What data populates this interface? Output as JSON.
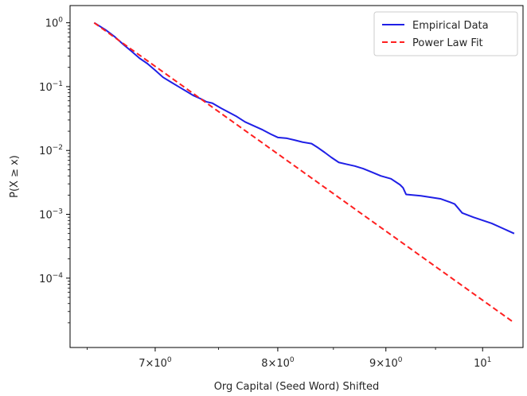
{
  "chart_data": {
    "type": "line",
    "title": "",
    "xlabel": "Org Capital (Seed Word) Shifted",
    "ylabel": "P(X ≥ x)",
    "xscale": "log",
    "yscale": "log",
    "xlim": [
      6.38,
      10.45
    ],
    "ylim": [
      8.2e-06,
      1.86
    ],
    "grid": false,
    "legend_position": "top-right",
    "x_ticks": [
      {
        "value": 7,
        "base": "7×10",
        "exp": "0"
      },
      {
        "value": 8,
        "base": "8×10",
        "exp": "0"
      },
      {
        "value": 9,
        "base": "9×10",
        "exp": "0"
      },
      {
        "value": 10,
        "base": "10",
        "exp": "1"
      }
    ],
    "y_ticks": [
      {
        "value": 1,
        "base": "10",
        "exp": "0"
      },
      {
        "value": 0.1,
        "base": "10",
        "exp": "−1"
      },
      {
        "value": 0.01,
        "base": "10",
        "exp": "−2"
      },
      {
        "value": 0.001,
        "base": "10",
        "exp": "−3"
      },
      {
        "value": 0.0001,
        "base": "10",
        "exp": "−4"
      }
    ],
    "series": [
      {
        "name": "Empirical Data",
        "color": "#1f1fe6",
        "style": "solid",
        "x": [
          6.55,
          6.63,
          6.7,
          6.76,
          6.82,
          6.88,
          6.94,
          7.0,
          7.06,
          7.12,
          7.18,
          7.24,
          7.3,
          7.36,
          7.4,
          7.45,
          7.52,
          7.58,
          7.65,
          7.72,
          7.8,
          7.87,
          7.94,
          8.0,
          8.08,
          8.15,
          8.22,
          8.3,
          8.36,
          8.42,
          8.48,
          8.55,
          8.62,
          8.7,
          8.78,
          8.86,
          8.95,
          9.05,
          9.14,
          9.17,
          9.2,
          9.35,
          9.55,
          9.65,
          9.7,
          9.78,
          9.9,
          10.1,
          10.35
        ],
        "y": [
          1.0,
          0.78,
          0.6,
          0.46,
          0.36,
          0.28,
          0.23,
          0.18,
          0.14,
          0.118,
          0.1,
          0.085,
          0.072,
          0.064,
          0.058,
          0.055,
          0.046,
          0.04,
          0.034,
          0.028,
          0.024,
          0.021,
          0.018,
          0.016,
          0.0155,
          0.0145,
          0.0135,
          0.0128,
          0.011,
          0.0093,
          0.0078,
          0.0065,
          0.0061,
          0.0057,
          0.0052,
          0.0046,
          0.004,
          0.0036,
          0.0029,
          0.0026,
          0.00205,
          0.00195,
          0.00175,
          0.00155,
          0.00145,
          0.00105,
          0.0009,
          0.00072,
          0.0005
        ]
      },
      {
        "name": "Power Law Fit",
        "color": "#ff1f1f",
        "style": "dashed",
        "x": [
          6.55,
          10.35
        ],
        "y": [
          1.0,
          2e-05
        ]
      }
    ]
  }
}
